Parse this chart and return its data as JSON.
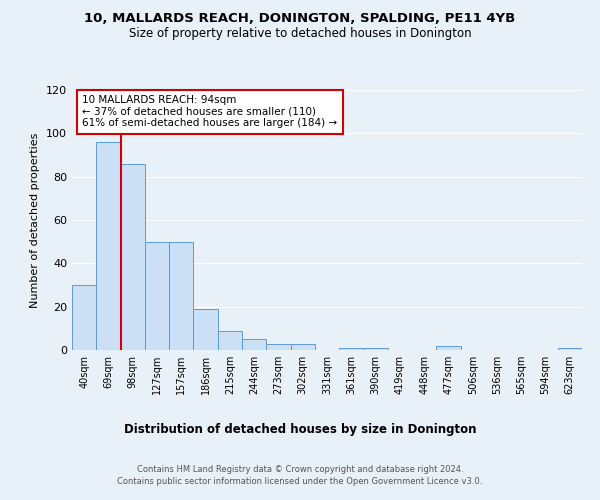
{
  "title": "10, MALLARDS REACH, DONINGTON, SPALDING, PE11 4YB",
  "subtitle": "Size of property relative to detached houses in Donington",
  "xlabel": "Distribution of detached houses by size in Donington",
  "ylabel": "Number of detached properties",
  "bin_labels": [
    "40sqm",
    "69sqm",
    "98sqm",
    "127sqm",
    "157sqm",
    "186sqm",
    "215sqm",
    "244sqm",
    "273sqm",
    "302sqm",
    "331sqm",
    "361sqm",
    "390sqm",
    "419sqm",
    "448sqm",
    "477sqm",
    "506sqm",
    "536sqm",
    "565sqm",
    "594sqm",
    "623sqm"
  ],
  "bar_heights": [
    30,
    96,
    86,
    50,
    50,
    19,
    9,
    5,
    3,
    3,
    0,
    1,
    1,
    0,
    0,
    2,
    0,
    0,
    0,
    0,
    1
  ],
  "bar_color": "#cce0f5",
  "bar_edge_color": "#5b9bd5",
  "property_bin_index": 2,
  "red_line_color": "#cc0000",
  "annotation_text": "10 MALLARDS REACH: 94sqm\n← 37% of detached houses are smaller (110)\n61% of semi-detached houses are larger (184) →",
  "annotation_box_color": "#ffffff",
  "annotation_box_edge": "#cc0000",
  "footer_line1": "Contains HM Land Registry data © Crown copyright and database right 2024.",
  "footer_line2": "Contains public sector information licensed under the Open Government Licence v3.0.",
  "bg_color": "#e8f0f8",
  "plot_bg_color": "#e8f0f8",
  "ylim": [
    0,
    120
  ],
  "yticks": [
    0,
    20,
    40,
    60,
    80,
    100,
    120
  ]
}
